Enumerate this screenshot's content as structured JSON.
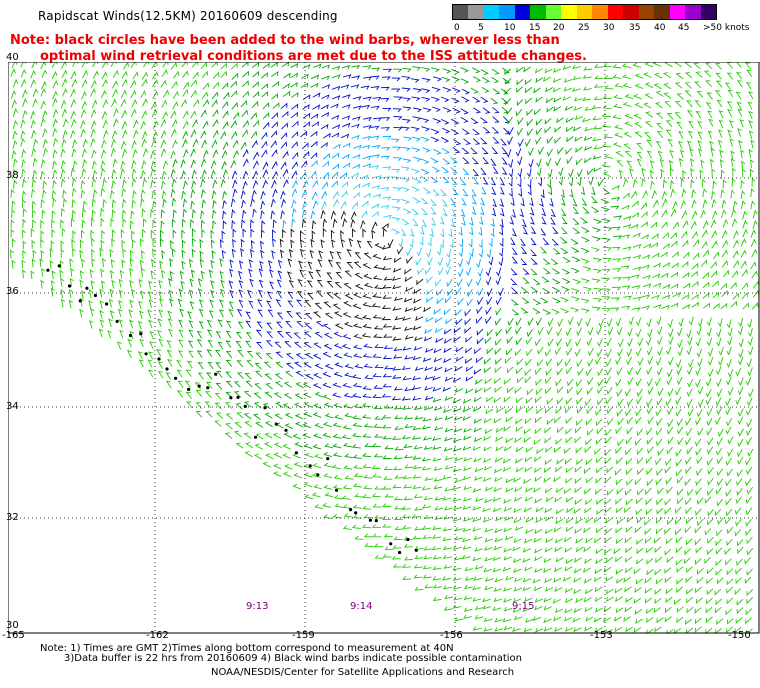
{
  "header": {
    "title": "Rapidscat Winds(12.5KM) 20160609 descending",
    "note_line1": "Note: black circles have been added to the wind barbs, wherever less than",
    "note_line2": "optimal wind retrieval conditions are met due to the ISS attitude changes."
  },
  "legend": {
    "labels": [
      "0",
      "5",
      "10",
      "15",
      "20",
      "25",
      "30",
      "35",
      "40",
      "45",
      ">50 knots"
    ],
    "colors": [
      "#555555",
      "#999999",
      "#00ccff",
      "#0099ff",
      "#0000dd",
      "#00bb00",
      "#66ff33",
      "#ffff00",
      "#ffcc00",
      "#ff8800",
      "#ff0000",
      "#cc0000",
      "#994400",
      "#663300",
      "#ff00ff",
      "#9900cc",
      "#330066"
    ]
  },
  "map": {
    "lat_labels": [
      "40",
      "38",
      "36",
      "34",
      "32",
      "30"
    ],
    "lon_labels": [
      "-165",
      "-162",
      "-159",
      "-156",
      "-153",
      "-150"
    ],
    "time_labels": [
      "9:13",
      "9:14",
      "9:15"
    ]
  },
  "footer": {
    "note_line1": "Note: 1) Times are GMT 2)Times along bottom correspond to measurement at 40N",
    "note_line2": "3)Data buffer is 22 hrs from 20160609 4) Black wind barbs indicate possible contamination",
    "credit": "NOAA/NESDIS/Center for Satellite Applications and Research"
  }
}
